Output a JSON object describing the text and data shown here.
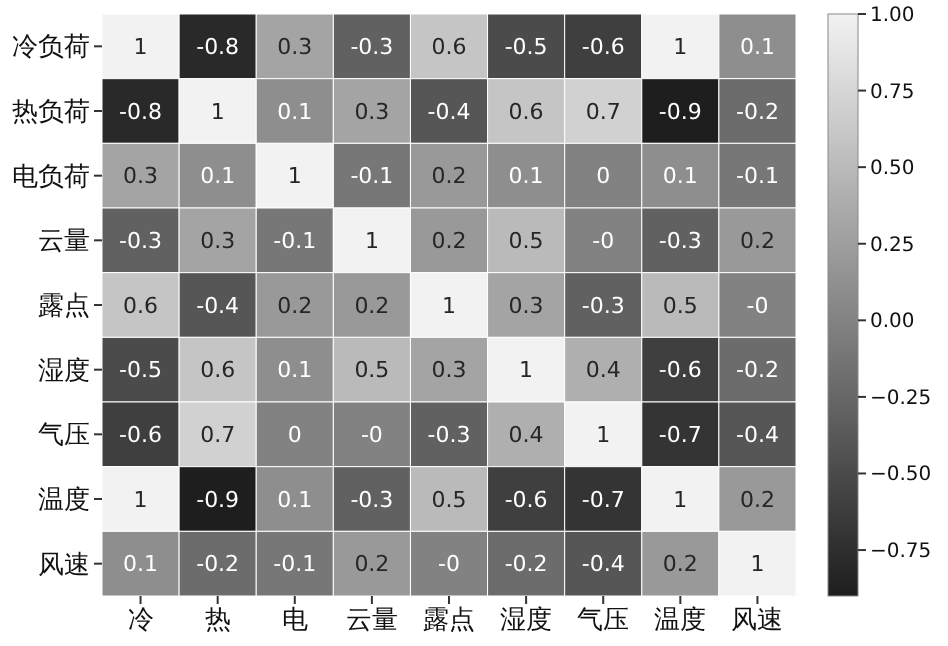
{
  "chart_data": {
    "type": "heatmap",
    "categories": [
      "冷",
      "热",
      "电",
      "云量",
      "露点",
      "湿度",
      "气压",
      "温度",
      "风速"
    ],
    "y_categories": [
      "冷负荷",
      "热负荷",
      "电负荷",
      "云量",
      "露点",
      "湿度",
      "气压",
      "温度",
      "风速"
    ],
    "cells": [
      [
        1,
        -0.8,
        0.3,
        -0.3,
        0.6,
        -0.5,
        -0.6,
        1,
        0.1
      ],
      [
        -0.8,
        1,
        0.1,
        0.3,
        -0.4,
        0.6,
        0.7,
        -0.9,
        -0.2
      ],
      [
        0.3,
        0.1,
        1,
        -0.1,
        0.2,
        0.1,
        0,
        0.1,
        -0.1
      ],
      [
        -0.3,
        0.3,
        -0.1,
        1,
        0.2,
        0.5,
        0,
        -0.3,
        0.2
      ],
      [
        0.6,
        -0.4,
        0.2,
        0.2,
        1,
        0.3,
        -0.3,
        0.5,
        0
      ],
      [
        -0.5,
        0.6,
        0.1,
        0.5,
        0.3,
        1,
        0.4,
        -0.6,
        -0.2
      ],
      [
        -0.6,
        0.7,
        0,
        0,
        -0.3,
        0.4,
        1,
        -0.7,
        -0.4
      ],
      [
        1,
        -0.9,
        0.1,
        -0.3,
        0.5,
        -0.6,
        -0.7,
        1,
        0.2
      ],
      [
        0.1,
        -0.2,
        -0.1,
        0.2,
        0,
        -0.2,
        -0.4,
        0.2,
        1
      ]
    ],
    "cell_labels": [
      [
        "1",
        "-0.8",
        "0.3",
        "-0.3",
        "0.6",
        "-0.5",
        "-0.6",
        "1",
        "0.1"
      ],
      [
        "-0.8",
        "1",
        "0.1",
        "0.3",
        "-0.4",
        "0.6",
        "0.7",
        "-0.9",
        "-0.2"
      ],
      [
        "0.3",
        "0.1",
        "1",
        "-0.1",
        "0.2",
        "0.1",
        "0",
        "0.1",
        "-0.1"
      ],
      [
        "-0.3",
        "0.3",
        "-0.1",
        "1",
        "0.2",
        "0.5",
        "-0",
        "-0.3",
        "0.2"
      ],
      [
        "0.6",
        "-0.4",
        "0.2",
        "0.2",
        "1",
        "0.3",
        "-0.3",
        "0.5",
        "-0"
      ],
      [
        "-0.5",
        "0.6",
        "0.1",
        "0.5",
        "0.3",
        "1",
        "0.4",
        "-0.6",
        "-0.2"
      ],
      [
        "-0.6",
        "0.7",
        "0",
        "-0",
        "-0.3",
        "0.4",
        "1",
        "-0.7",
        "-0.4"
      ],
      [
        "1",
        "-0.9",
        "0.1",
        "-0.3",
        "0.5",
        "-0.6",
        "-0.7",
        "1",
        "0.2"
      ],
      [
        "0.1",
        "-0.2",
        "-0.1",
        "0.2",
        "-0",
        "-0.2",
        "-0.4",
        "0.2",
        "1"
      ]
    ],
    "clim": [
      -0.9,
      1
    ],
    "cticks": [
      {
        "value": -0.75,
        "label": "−0.75"
      },
      {
        "value": -0.5,
        "label": "−0.50"
      },
      {
        "value": -0.25,
        "label": "−0.25"
      },
      {
        "value": 0,
        "label": "0.00"
      },
      {
        "value": 0.25,
        "label": "0.25"
      },
      {
        "value": 0.5,
        "label": "0.50"
      },
      {
        "value": 0.75,
        "label": "0.75"
      },
      {
        "value": 1,
        "label": "1.00"
      }
    ]
  }
}
